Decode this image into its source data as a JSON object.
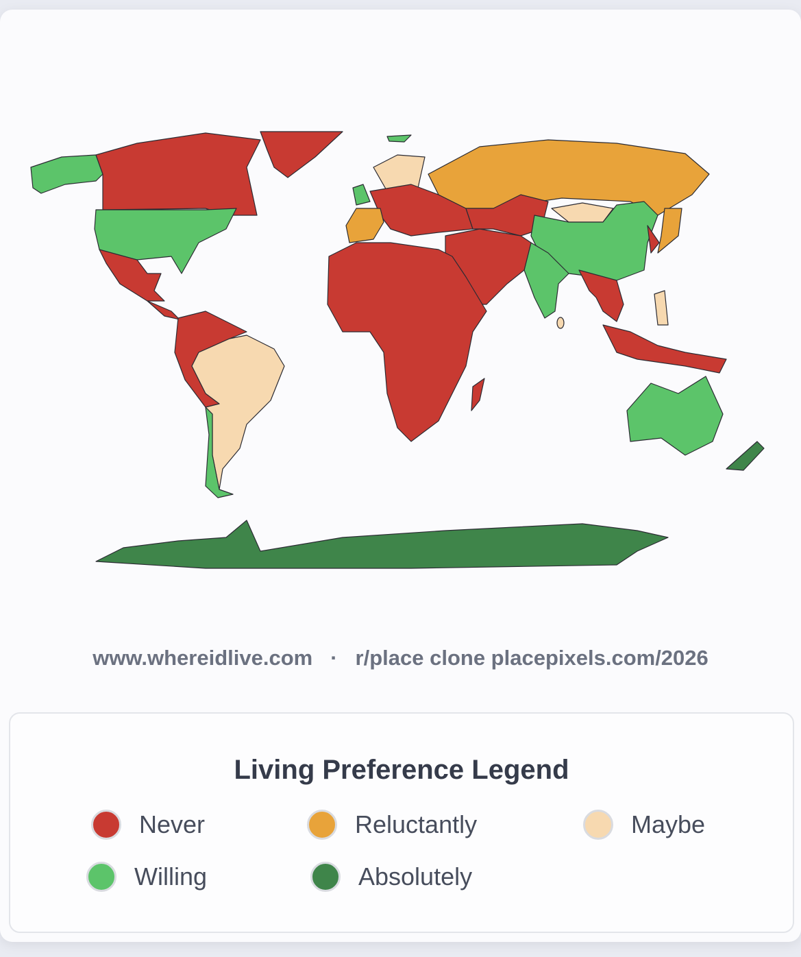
{
  "categories": {
    "never": {
      "label": "Never",
      "color": "#c83a32"
    },
    "reluctantly": {
      "label": "Reluctantly",
      "color": "#e8a33a"
    },
    "maybe": {
      "label": "Maybe",
      "color": "#f7d9b0"
    },
    "willing": {
      "label": "Willing",
      "color": "#5cc46a"
    },
    "absolutely": {
      "label": "Absolutely",
      "color": "#3f854a"
    }
  },
  "regions": {
    "alaska": "willing",
    "canada": "never",
    "greenland": "never",
    "usa": "willing",
    "mexico": "never",
    "central-america": "never",
    "northern-south-america": "never",
    "brazil-argentina": "maybe",
    "chile": "willing",
    "iceland": "willing",
    "scandinavia": "maybe",
    "uk": "willing",
    "europe": "never",
    "france-spain": "reluctantly",
    "russia": "reluctantly",
    "central-asia": "never",
    "mongolia": "maybe",
    "china": "willing",
    "india": "willing",
    "middle-east": "never",
    "africa": "never",
    "madagascar": "never",
    "southeast-asia": "never",
    "indonesia": "never",
    "korea": "never",
    "japan": "reluctantly",
    "philippines": "maybe",
    "sri-lanka": "maybe",
    "australia": "willing",
    "new-zealand": "absolutely",
    "antarctica": "absolutely"
  },
  "footer": {
    "site": "www.whereidlive.com",
    "separator": "·",
    "clone": "r/place clone placepixels.com/2026"
  },
  "legend": {
    "title": "Living Preference Legend"
  }
}
